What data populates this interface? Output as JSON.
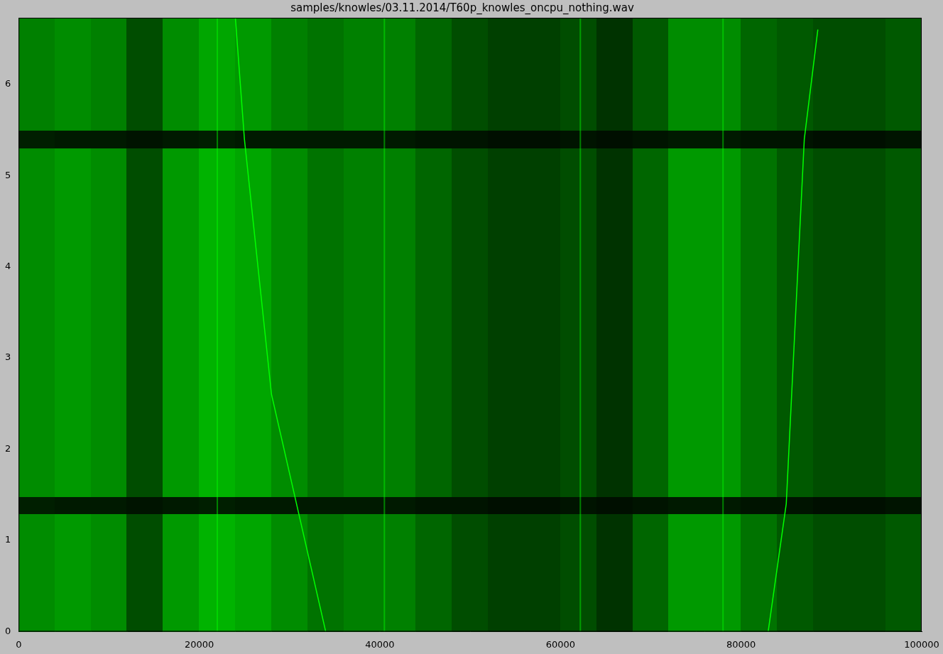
{
  "chart_data": {
    "type": "heatmap",
    "title": "samples/knowles/03.11.2014/T60p_knowles_oncpu_nothing.wav",
    "xlim": [
      0,
      100000
    ],
    "xticks": [
      0,
      20000,
      40000,
      60000,
      80000,
      100000
    ],
    "ylim": [
      0,
      6.73
    ],
    "yticks": [
      0,
      1,
      2,
      3,
      4,
      5,
      6
    ],
    "grid": false,
    "color": "#00ff00",
    "zlim": [
      0,
      1
    ],
    "x_edges": [
      0,
      4000,
      8000,
      12000,
      16000,
      20000,
      24000,
      28000,
      32000,
      36000,
      40000,
      44000,
      48000,
      52000,
      56000,
      60000,
      64000,
      68000,
      72000,
      76000,
      80000,
      84000,
      88000,
      92000,
      96000,
      100000
    ],
    "y_edges": [
      0,
      1.3,
      1.48,
      5.3,
      5.5,
      6.73
    ],
    "cells": [
      [
        0.55,
        0.6,
        0.55,
        0.3,
        0.6,
        0.7,
        0.65,
        0.55,
        0.45,
        0.5,
        0.5,
        0.4,
        0.3,
        0.25,
        0.25,
        0.3,
        0.2,
        0.4,
        0.6,
        0.6,
        0.45,
        0.35,
        0.3,
        0.3,
        0.35
      ],
      [
        0.12,
        0.1,
        0.1,
        0.08,
        0.1,
        0.12,
        0.1,
        0.1,
        0.1,
        0.1,
        0.1,
        0.08,
        0.08,
        0.06,
        0.06,
        0.08,
        0.06,
        0.08,
        0.1,
        0.1,
        0.08,
        0.08,
        0.06,
        0.06,
        0.08
      ],
      [
        0.55,
        0.6,
        0.55,
        0.3,
        0.6,
        0.7,
        0.65,
        0.55,
        0.45,
        0.5,
        0.5,
        0.4,
        0.3,
        0.25,
        0.25,
        0.3,
        0.2,
        0.4,
        0.6,
        0.6,
        0.45,
        0.35,
        0.3,
        0.3,
        0.35
      ],
      [
        0.12,
        0.1,
        0.1,
        0.08,
        0.1,
        0.12,
        0.1,
        0.1,
        0.1,
        0.1,
        0.1,
        0.08,
        0.08,
        0.06,
        0.06,
        0.08,
        0.06,
        0.08,
        0.1,
        0.1,
        0.08,
        0.08,
        0.06,
        0.06,
        0.08
      ],
      [
        0.5,
        0.55,
        0.5,
        0.3,
        0.55,
        0.65,
        0.6,
        0.5,
        0.45,
        0.5,
        0.5,
        0.4,
        0.3,
        0.25,
        0.25,
        0.3,
        0.2,
        0.35,
        0.55,
        0.55,
        0.4,
        0.35,
        0.3,
        0.3,
        0.35
      ]
    ],
    "lines": [
      {
        "x": [
          24000,
          25000,
          28000,
          34000
        ],
        "y": [
          6.73,
          5.4,
          2.6,
          0
        ]
      },
      {
        "x": [
          83000,
          85000,
          87000,
          88500
        ],
        "y": [
          0,
          1.4,
          5.4,
          6.6
        ]
      }
    ],
    "vertical_lines": [
      22000,
      40500,
      62200,
      78000
    ]
  }
}
